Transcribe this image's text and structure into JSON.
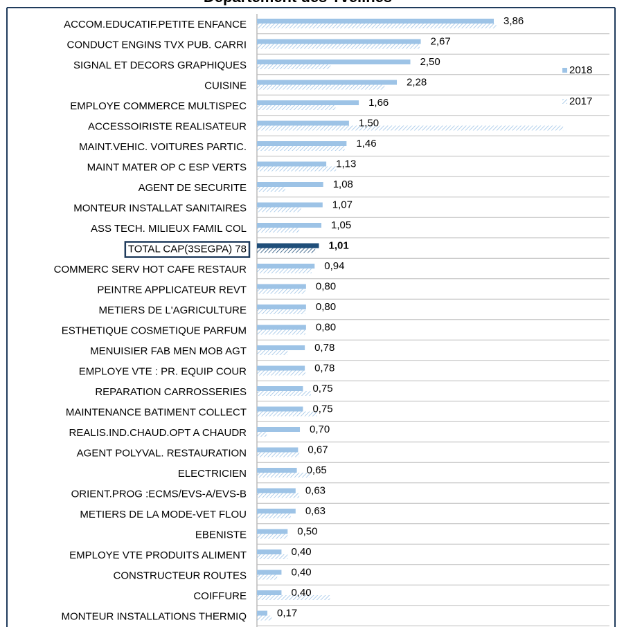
{
  "chart_data": {
    "type": "bar",
    "orientation": "horizontal",
    "title": "Département des Yvelines",
    "categories": [
      "ACCOM.EDUCATIF.PETITE ENFANCE",
      "CONDUCT ENGINS TVX PUB. CARRI",
      "SIGNAL ET DECORS GRAPHIQUES",
      "CUISINE",
      "EMPLOYE COMMERCE MULTISPEC",
      "ACCESSOIRISTE REALISATEUR",
      "MAINT.VEHIC. VOITURES PARTIC.",
      "MAINT MATER OP C ESP VERTS",
      "AGENT DE SECURITE",
      "MONTEUR INSTALLAT SANITAIRES",
      "ASS TECH. MILIEUX FAMIL COL",
      "TOTAL CAP(3SEGPA) 78",
      "COMMERC SERV HOT CAFE RESTAUR",
      "PEINTRE APPLICATEUR REVT",
      "METIERS DE L'AGRICULTURE",
      "ESTHETIQUE COSMETIQUE PARFUM",
      "MENUISIER FAB MEN MOB AGT",
      "EMPLOYE VTE : PR. EQUIP COUR",
      "REPARATION CARROSSERIES",
      "MAINTENANCE BATIMENT COLLECT",
      "REALIS.IND.CHAUD.OPT A CHAUDR",
      "AGENT POLYVAL. RESTAURATION",
      "ELECTRICIEN",
      "ORIENT.PROG :ECMS/EVS-A/EVS-B",
      "METIERS DE LA MODE-VET FLOU",
      "EBENISTE",
      "EMPLOYE VTE PRODUITS ALIMENT",
      "CONSTRUCTEUR ROUTES",
      "COIFFURE",
      "MONTEUR INSTALLATIONS THERMIQ"
    ],
    "series": [
      {
        "name": "2018",
        "color": "#9dc3e6",
        "highlight_color": "#1f4e79",
        "values": [
          3.86,
          2.67,
          2.5,
          2.28,
          1.66,
          1.5,
          1.46,
          1.13,
          1.08,
          1.07,
          1.05,
          1.01,
          0.94,
          0.8,
          0.8,
          0.8,
          0.78,
          0.78,
          0.75,
          0.75,
          0.7,
          0.67,
          0.65,
          0.63,
          0.63,
          0.5,
          0.4,
          0.4,
          0.4,
          0.17
        ],
        "value_labels": [
          "3,86",
          "2,67",
          "2,50",
          "2,28",
          "1,66",
          "1,50",
          "1,46",
          "1,13",
          "1,08",
          "1,07",
          "1,05",
          "1,01",
          "0,94",
          "0,80",
          "0,80",
          "0,80",
          "0,78",
          "0,78",
          "0,75",
          "0,75",
          "0,70",
          "0,67",
          "0,65",
          "0,63",
          "0,63",
          "0,50",
          "0,40",
          "0,40",
          "0,40",
          "0,17"
        ]
      },
      {
        "name": "2017",
        "color": "#9dc3e6",
        "highlight_color": "#1f4e79",
        "hatched": true,
        "values": [
          3.9,
          2.65,
          1.2,
          2.08,
          1.28,
          4.99,
          1.43,
          1.29,
          0.46,
          0.72,
          0.69,
          0.95,
          0.89,
          0.79,
          0.79,
          0.79,
          0.5,
          0.79,
          0.88,
          0.98,
          0.16,
          0.69,
          0.87,
          0.69,
          0.55,
          0.5,
          0.5,
          0.33,
          1.19,
          0.24
        ]
      }
    ],
    "highlight_index": 11,
    "legend": "right"
  }
}
